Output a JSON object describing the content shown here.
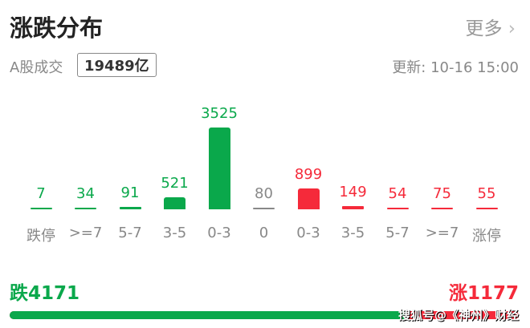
{
  "header": {
    "title": "涨跌分布",
    "more_label": "更多",
    "more_icon": "chevron-right-icon"
  },
  "summary": {
    "label": "A股成交",
    "volume": "19489亿",
    "updated": "更新:  10-16 15:00"
  },
  "chart_data": {
    "type": "bar",
    "categories": [
      "跌停",
      ">=7",
      "5-7",
      "3-5",
      "0-3",
      "0",
      "0-3",
      "3-5",
      "5-7",
      ">=7",
      "涨停"
    ],
    "values": [
      7,
      34,
      91,
      521,
      3525,
      80,
      899,
      149,
      54,
      75,
      55
    ],
    "colors": [
      "#0aa84b",
      "#0aa84b",
      "#0aa84b",
      "#0aa84b",
      "#0aa84b",
      "#888888",
      "#f52a3a",
      "#f52a3a",
      "#f52a3a",
      "#f52a3a",
      "#f52a3a"
    ]
  },
  "totals": {
    "down_label": "跌4171",
    "up_label": "涨1177",
    "down": 4171,
    "up": 1177
  },
  "watermark": "搜狐号@《神州》财经"
}
